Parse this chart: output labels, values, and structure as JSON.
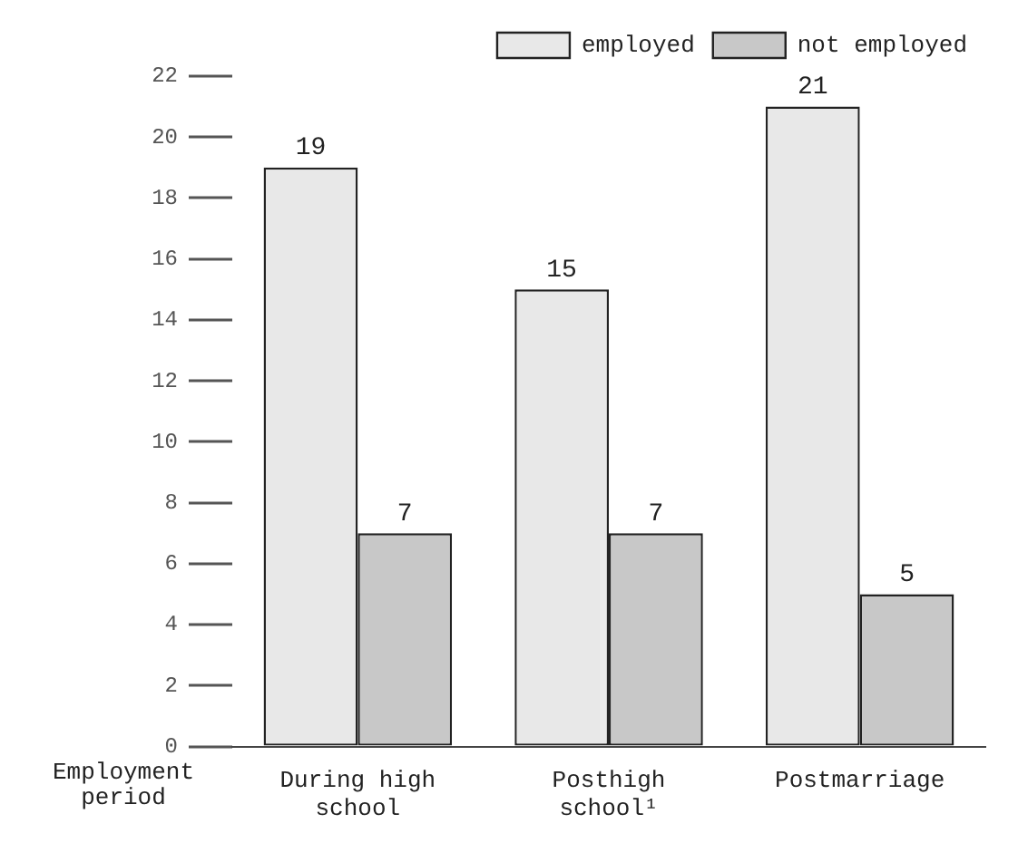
{
  "chart_data": {
    "type": "bar",
    "xlabel": "Employment period",
    "categories": [
      "During high school",
      "Posthigh school¹",
      "Postmarriage"
    ],
    "series": [
      {
        "name": "employed",
        "color": "#e8e8e8",
        "values": [
          19,
          15,
          21
        ]
      },
      {
        "name": "not employed",
        "color": "#c8c8c8",
        "values": [
          7,
          7,
          5
        ]
      }
    ],
    "ylim": [
      0,
      22
    ],
    "yticks": [
      0,
      2,
      4,
      6,
      8,
      10,
      12,
      14,
      16,
      18,
      20,
      22
    ],
    "grid": false,
    "legend": "top right",
    "data_labels": true
  }
}
